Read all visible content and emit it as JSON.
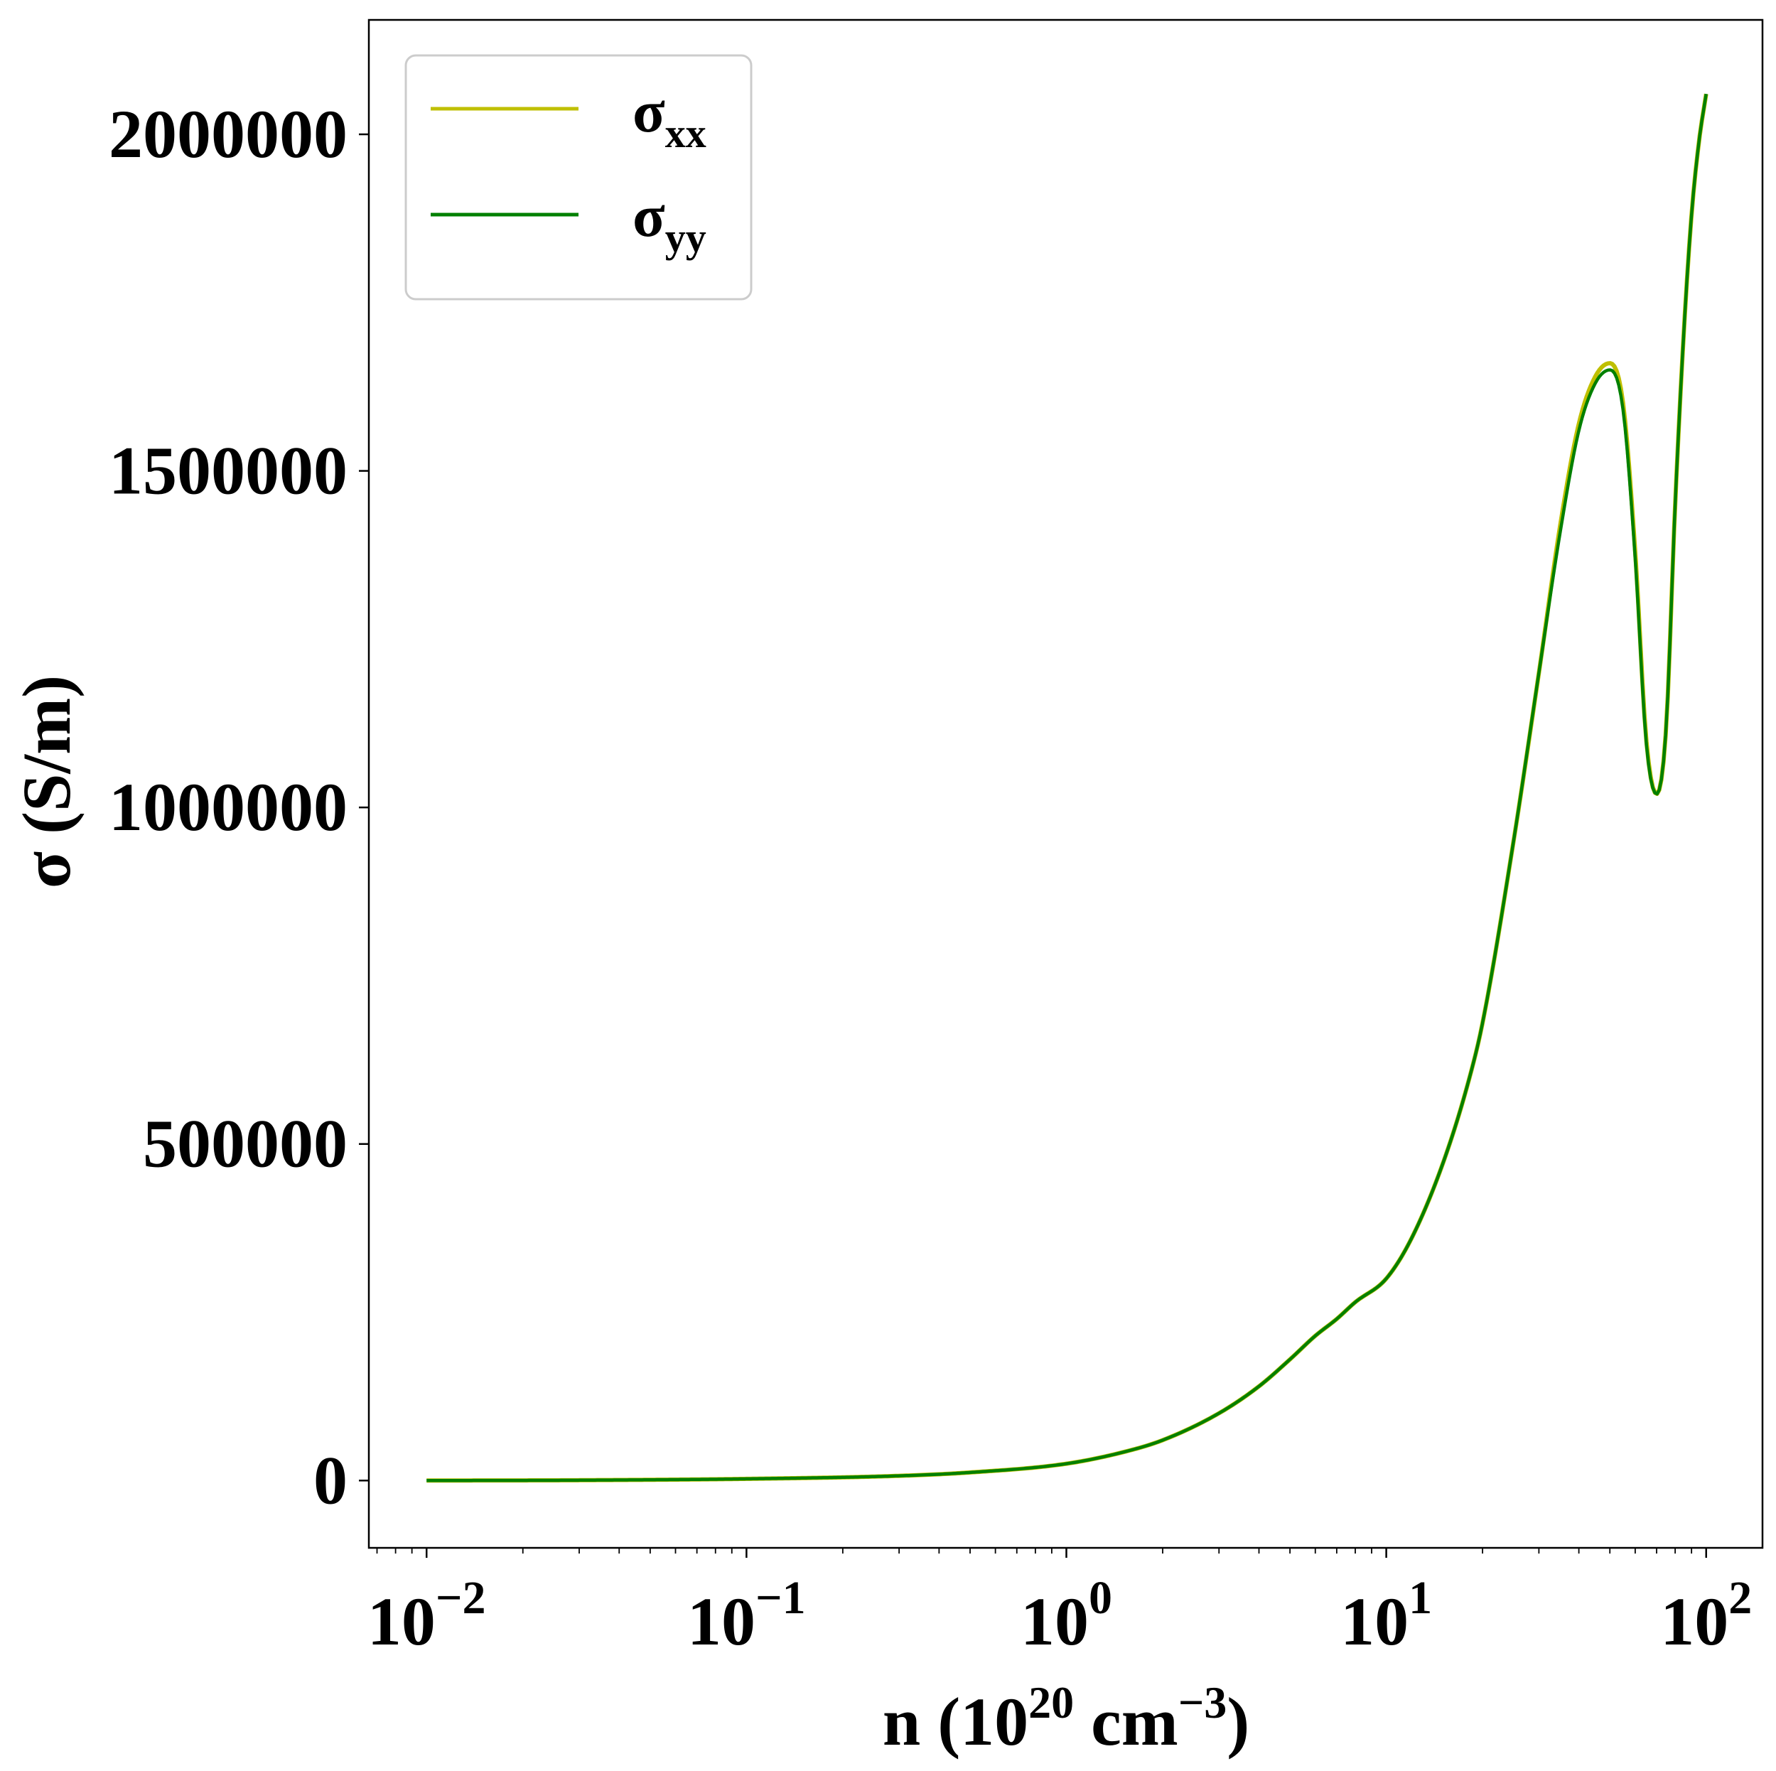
{
  "chart_data": {
    "type": "line",
    "xscale": "log",
    "grid": false,
    "legend_position": "top-left",
    "xlabel": {
      "main": "n (10",
      "sup1": "20",
      "mid": " cm",
      "sup2": "−3",
      "end": ")"
    },
    "ylabel": "σ (S/m)",
    "xlim": [
      0.0066,
      150
    ],
    "ylim": [
      -100000,
      2170000
    ],
    "x_ticks": [
      {
        "value": 0.01,
        "base": "10",
        "exp": "−2"
      },
      {
        "value": 0.1,
        "base": "10",
        "exp": "−1"
      },
      {
        "value": 1,
        "base": "10",
        "exp": "0"
      },
      {
        "value": 10,
        "base": "10",
        "exp": "1"
      },
      {
        "value": 100,
        "base": "10",
        "exp": "2"
      }
    ],
    "y_ticks": [
      {
        "value": 0,
        "label": "0"
      },
      {
        "value": 500000,
        "label": "500000"
      },
      {
        "value": 1000000,
        "label": "1000000"
      },
      {
        "value": 1500000,
        "label": "1500000"
      },
      {
        "value": 2000000,
        "label": "2000000"
      }
    ],
    "series": [
      {
        "name": "σ",
        "subscript": "xx",
        "color": "#bfbf00",
        "x": [
          0.01,
          0.03,
          0.1,
          0.3,
          0.5,
          1,
          1.5,
          2,
          3,
          4,
          5,
          6,
          7,
          8,
          10,
          12,
          15,
          18,
          20,
          25,
          30,
          35,
          40,
          45,
          50,
          55,
          60,
          65,
          70,
          75,
          80,
          85,
          90,
          95,
          100
        ],
        "y": [
          0,
          500,
          2500,
          7000,
          12000,
          25000,
          42000,
          60000,
          100000,
          140000,
          180000,
          215000,
          240000,
          265000,
          300000,
          360000,
          470000,
          590000,
          680000,
          950000,
          1200000,
          1420000,
          1570000,
          1640000,
          1660000,
          1600000,
          1380000,
          1100000,
          1020000,
          1120000,
          1450000,
          1700000,
          1880000,
          1990000,
          2060000
        ]
      },
      {
        "name": "σ",
        "subscript": "yy",
        "color": "#008000",
        "x": [
          0.01,
          0.03,
          0.1,
          0.3,
          0.5,
          1,
          1.5,
          2,
          3,
          4,
          5,
          6,
          7,
          8,
          10,
          12,
          15,
          18,
          20,
          25,
          30,
          35,
          40,
          45,
          50,
          55,
          60,
          65,
          70,
          75,
          80,
          85,
          90,
          95,
          100
        ],
        "y": [
          0,
          500,
          2500,
          7000,
          12000,
          25000,
          42000,
          60000,
          100000,
          140000,
          180000,
          215000,
          240000,
          265000,
          300000,
          360000,
          470000,
          590000,
          680000,
          950000,
          1200000,
          1410000,
          1560000,
          1630000,
          1650000,
          1590000,
          1370000,
          1095000,
          1020000,
          1120000,
          1450000,
          1700000,
          1880000,
          1990000,
          2060000
        ]
      }
    ]
  }
}
